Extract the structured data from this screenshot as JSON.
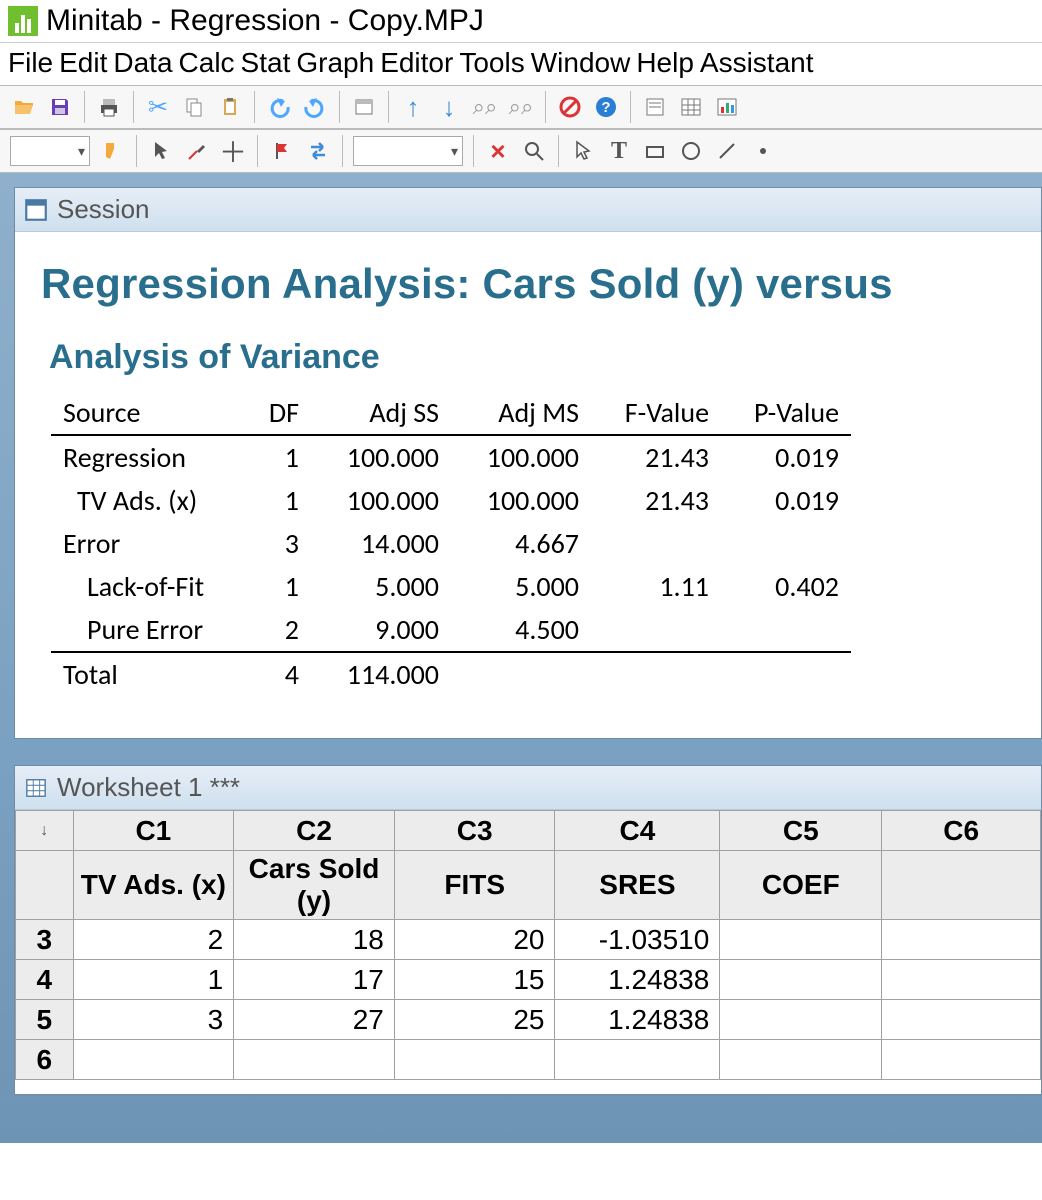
{
  "window": {
    "title": "Minitab - Regression - Copy.MPJ"
  },
  "menu": [
    "File",
    "Edit",
    "Data",
    "Calc",
    "Stat",
    "Graph",
    "Editor",
    "Tools",
    "Window",
    "Help",
    "Assistant"
  ],
  "session": {
    "window_title": "Session",
    "heading": "Regression Analysis: Cars Sold (y) versus ",
    "subheading": "Analysis of Variance",
    "columns": [
      "Source",
      "DF",
      "Adj SS",
      "Adj MS",
      "F-Value",
      "P-Value"
    ],
    "rows": [
      {
        "label": "Regression",
        "indent": 0,
        "DF": "1",
        "AdjSS": "100.000",
        "AdjMS": "100.000",
        "F": "21.43",
        "P": "0.019"
      },
      {
        "label": "TV Ads. (x)",
        "indent": 1,
        "DF": "1",
        "AdjSS": "100.000",
        "AdjMS": "100.000",
        "F": "21.43",
        "P": "0.019"
      },
      {
        "label": "Error",
        "indent": 0,
        "DF": "3",
        "AdjSS": "14.000",
        "AdjMS": "4.667",
        "F": "",
        "P": ""
      },
      {
        "label": "Lack-of-Fit",
        "indent": 2,
        "DF": "1",
        "AdjSS": "5.000",
        "AdjMS": "5.000",
        "F": "1.11",
        "P": "0.402"
      },
      {
        "label": "Pure Error",
        "indent": 2,
        "DF": "2",
        "AdjSS": "9.000",
        "AdjMS": "4.500",
        "F": "",
        "P": ""
      }
    ],
    "total": {
      "label": "Total",
      "DF": "4",
      "AdjSS": "114.000",
      "AdjMS": "",
      "F": "",
      "P": ""
    }
  },
  "worksheet": {
    "window_title": "Worksheet 1 ***",
    "col_ids": [
      "C1",
      "C2",
      "C3",
      "C4",
      "C5",
      "C6"
    ],
    "col_names": [
      "TV Ads. (x)",
      "Cars Sold (y)",
      "FITS",
      "SRES",
      "COEF",
      ""
    ],
    "row_start": 3,
    "rows": [
      [
        "2",
        "18",
        "20",
        "-1.03510",
        "",
        ""
      ],
      [
        "1",
        "17",
        "15",
        "1.24838",
        "",
        ""
      ],
      [
        "3",
        "27",
        "25",
        "1.24838",
        "",
        ""
      ],
      [
        "",
        "",
        "",
        "",
        "",
        ""
      ]
    ]
  },
  "colors": {
    "heading": "#2a6e8e",
    "mdi_bg_top": "#8fb0cc",
    "mdi_bg_bot": "#6e94b5",
    "grid_border": "#a0a0a0",
    "header_bg": "#ececec"
  }
}
